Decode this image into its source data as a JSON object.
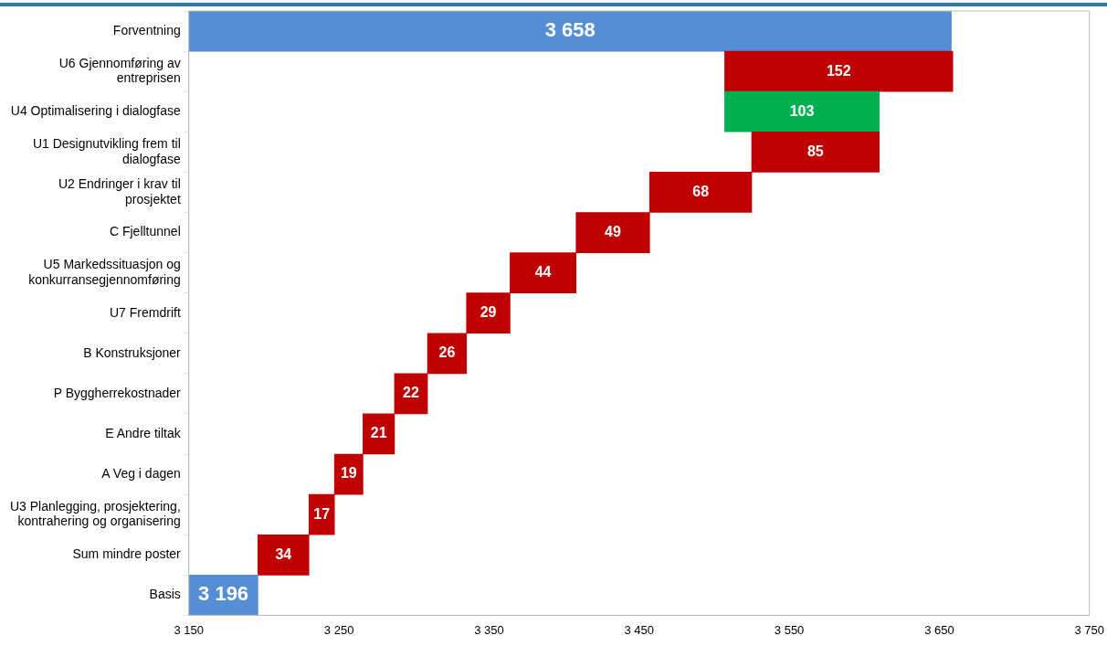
{
  "chart_data": {
    "type": "bar",
    "orientation": "horizontal",
    "categories": [
      "Forventning",
      "U6 Gjennomføring av entreprisen",
      "U4 Optimalisering i dialogfase",
      "U1 Designutvikling frem til dialogfase",
      "U2 Endringer i krav til prosjektet",
      "C Fjelltunnel",
      "U5 Markedssituasjon og konkurransegjennomføring",
      "U7 Fremdrift",
      "B Konstruksjoner",
      "P Byggherrekostnader",
      "E Andre tiltak",
      "A Veg i dagen",
      "U3 Planlegging, prosjektering, kontrahering og organisering",
      "Sum mindre poster",
      "Basis"
    ],
    "values": [
      3658,
      152,
      -103,
      85,
      68,
      49,
      44,
      29,
      26,
      22,
      21,
      19,
      17,
      34,
      3196
    ],
    "base": [
      null,
      3507,
      3610,
      3525,
      3457,
      3408,
      3364,
      3335,
      3309,
      3287,
      3266,
      3247,
      3230,
      3196,
      null
    ],
    "colors": [
      "#558ed5",
      "#c00000",
      "#00b050",
      "#c00000",
      "#c00000",
      "#c00000",
      "#c00000",
      "#c00000",
      "#c00000",
      "#c00000",
      "#c00000",
      "#c00000",
      "#c00000",
      "#c00000",
      "#558ed5"
    ],
    "value_labels": [
      "3 658",
      "152",
      "103",
      "85",
      "68",
      "49",
      "44",
      "29",
      "26",
      "22",
      "21",
      "19",
      "17",
      "34",
      "3 196"
    ],
    "xlim": [
      3150,
      3750
    ],
    "xticks": [
      {
        "value": 3150,
        "label": "3 150"
      },
      {
        "value": 3250,
        "label": "3 250"
      },
      {
        "value": 3350,
        "label": "3 350"
      },
      {
        "value": 3450,
        "label": "3 450"
      },
      {
        "value": 3550,
        "label": "3 550"
      },
      {
        "value": 3650,
        "label": "3 650"
      },
      {
        "value": 3750,
        "label": "3 750"
      }
    ],
    "grid": false,
    "legend": false
  }
}
